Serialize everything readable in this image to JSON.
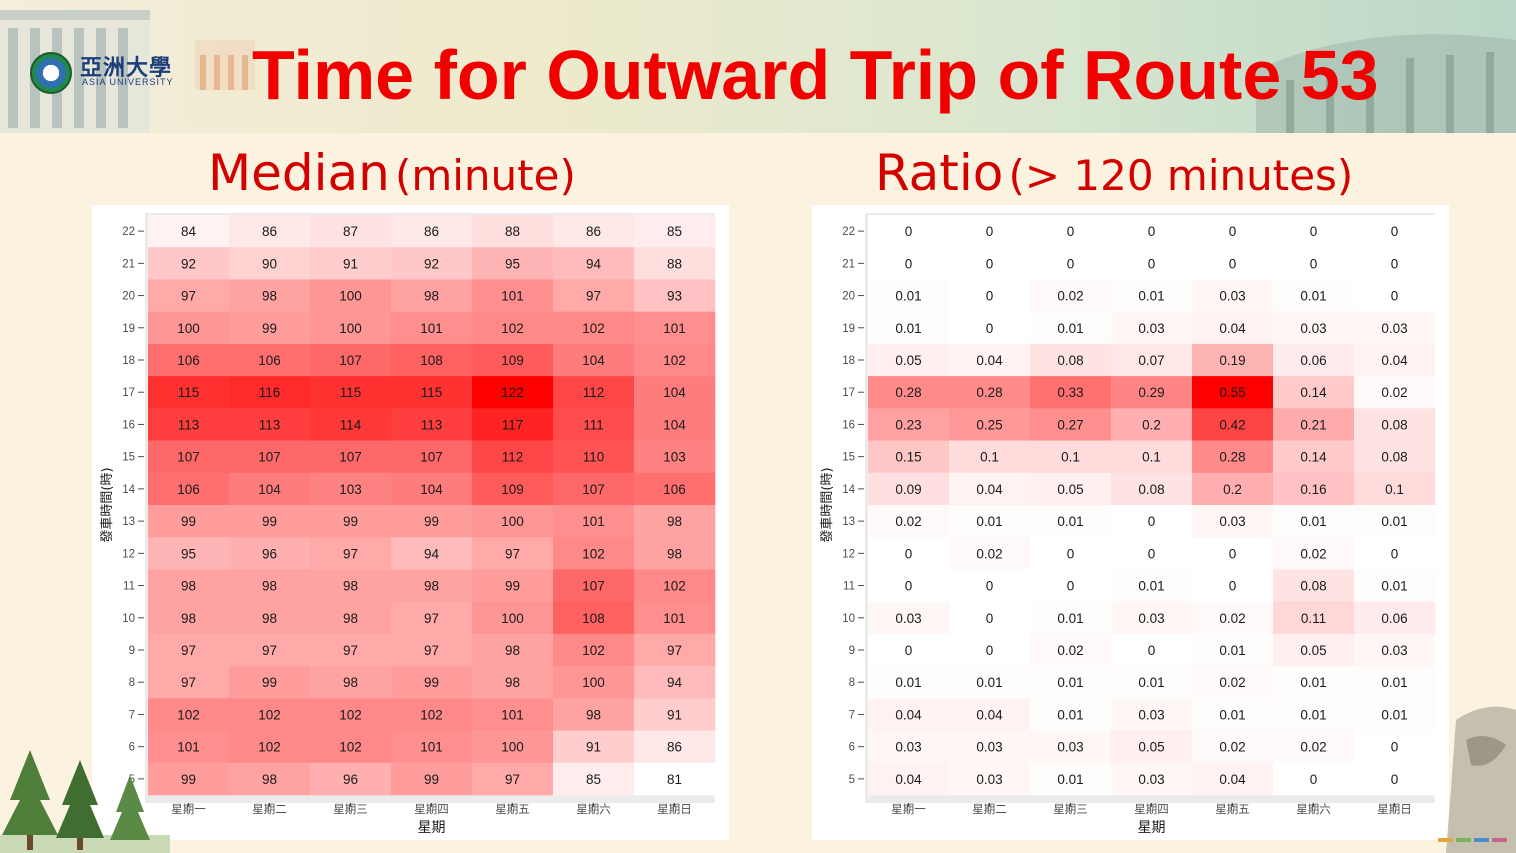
{
  "slide": {
    "title": "Time for Outward Trip of Route 53",
    "logo": {
      "name_cn": "亞洲大學",
      "name_en": "ASIA UNIVERSITY"
    },
    "colors": {
      "title": "#f10000",
      "subtitle": "#d40000",
      "heat_high": "#ff0000",
      "heat_low": "#ffffff"
    }
  },
  "left_panel": {
    "title_main": "Median",
    "title_unit": "(minute)"
  },
  "right_panel": {
    "title_main": "Ratio",
    "title_unit": "(> 120 minutes)"
  },
  "chart_data": [
    {
      "type": "heatmap",
      "xlabel": "星期",
      "ylabel": "發車時間(時)",
      "x": [
        "星期一",
        "星期二",
        "星期三",
        "星期四",
        "星期五",
        "星期六",
        "星期日"
      ],
      "y": [
        22,
        21,
        20,
        19,
        18,
        17,
        16,
        15,
        14,
        13,
        12,
        11,
        10,
        9,
        8,
        7,
        6,
        5
      ],
      "color_range": [
        81,
        122
      ],
      "values": [
        [
          84,
          86,
          87,
          86,
          88,
          86,
          85
        ],
        [
          92,
          90,
          91,
          92,
          95,
          94,
          88
        ],
        [
          97,
          98,
          100,
          98,
          101,
          97,
          93
        ],
        [
          100,
          99,
          100,
          101,
          102,
          102,
          101
        ],
        [
          106,
          106,
          107,
          108,
          109,
          104,
          102
        ],
        [
          115,
          116,
          115,
          115,
          122,
          112,
          104
        ],
        [
          113,
          113,
          114,
          113,
          117,
          111,
          104
        ],
        [
          107,
          107,
          107,
          107,
          112,
          110,
          103
        ],
        [
          106,
          104,
          103,
          104,
          109,
          107,
          106
        ],
        [
          99,
          99,
          99,
          99,
          100,
          101,
          98
        ],
        [
          95,
          96,
          97,
          94,
          97,
          102,
          98
        ],
        [
          98,
          98,
          98,
          98,
          99,
          107,
          102
        ],
        [
          98,
          98,
          98,
          97,
          100,
          108,
          101
        ],
        [
          97,
          97,
          97,
          97,
          98,
          102,
          97
        ],
        [
          97,
          99,
          98,
          99,
          98,
          100,
          94
        ],
        [
          102,
          102,
          102,
          102,
          101,
          98,
          91
        ],
        [
          101,
          102,
          102,
          101,
          100,
          91,
          86
        ],
        [
          99,
          98,
          96,
          99,
          97,
          85,
          81
        ]
      ]
    },
    {
      "type": "heatmap",
      "xlabel": "星期",
      "ylabel": "發車時間(時)",
      "x": [
        "星期一",
        "星期二",
        "星期三",
        "星期四",
        "星期五",
        "星期六",
        "星期日"
      ],
      "y": [
        22,
        21,
        20,
        19,
        18,
        17,
        16,
        15,
        14,
        13,
        12,
        11,
        10,
        9,
        8,
        7,
        6,
        5
      ],
      "color_range": [
        0,
        0.55
      ],
      "values": [
        [
          0,
          0,
          0,
          0,
          0,
          0,
          0
        ],
        [
          0,
          0,
          0,
          0,
          0,
          0,
          0
        ],
        [
          0.01,
          0,
          0.02,
          0.01,
          0.03,
          0.01,
          0
        ],
        [
          0.01,
          0,
          0.01,
          0.03,
          0.04,
          0.03,
          0.03
        ],
        [
          0.05,
          0.04,
          0.08,
          0.07,
          0.19,
          0.06,
          0.04
        ],
        [
          0.28,
          0.28,
          0.33,
          0.29,
          0.55,
          0.14,
          0.02
        ],
        [
          0.23,
          0.25,
          0.27,
          0.2,
          0.42,
          0.21,
          0.08
        ],
        [
          0.15,
          0.1,
          0.1,
          0.1,
          0.28,
          0.14,
          0.08
        ],
        [
          0.09,
          0.04,
          0.05,
          0.08,
          0.2,
          0.16,
          0.1
        ],
        [
          0.02,
          0.01,
          0.01,
          0,
          0.03,
          0.01,
          0.01
        ],
        [
          0,
          0.02,
          0,
          0,
          0,
          0.02,
          0
        ],
        [
          0,
          0,
          0,
          0.01,
          0,
          0.08,
          0.01
        ],
        [
          0.03,
          0,
          0.01,
          0.03,
          0.02,
          0.11,
          0.06
        ],
        [
          0,
          0,
          0.02,
          0,
          0.01,
          0.05,
          0.03
        ],
        [
          0.01,
          0.01,
          0.01,
          0.01,
          0.02,
          0.01,
          0.01
        ],
        [
          0.04,
          0.04,
          0.01,
          0.03,
          0.01,
          0.01,
          0.01
        ],
        [
          0.03,
          0.03,
          0.03,
          0.05,
          0.02,
          0.02,
          0
        ],
        [
          0.04,
          0.03,
          0.01,
          0.03,
          0.04,
          0,
          0
        ]
      ]
    }
  ]
}
